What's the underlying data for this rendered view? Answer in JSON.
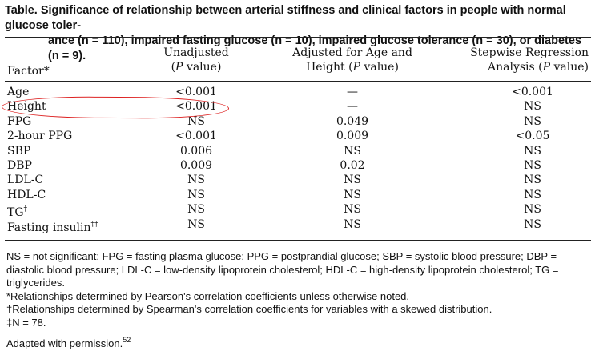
{
  "caption": {
    "label": "Table.",
    "line1": "Significance of relationship between arterial stiffness and clinical factors in people with normal glucose toler-",
    "line2": "ance (n = 110), impaired fasting glucose (n = 10), impaired glucose tolerance (n = 30), or diabetes (n = 9)."
  },
  "header": {
    "factor": "Factor*",
    "unadjusted_l1": "Unadjusted",
    "unadjusted_l2_pre": "(",
    "unadjusted_l2_p": "P",
    "unadjusted_l2_post": " value)",
    "adjusted_l1": "Adjusted for Age and",
    "adjusted_l2_pre": "Height (",
    "adjusted_l2_p": "P",
    "adjusted_l2_post": " value)",
    "stepwise_l1": "Stepwise Regression",
    "stepwise_l2_pre": "Analysis (",
    "stepwise_l2_p": "P",
    "stepwise_l2_post": " value)"
  },
  "rows": [
    {
      "factor": "Age",
      "sup": "",
      "unadjusted": "<0.001",
      "adjusted": "—",
      "stepwise": "<0.001"
    },
    {
      "factor": "Height",
      "sup": "",
      "unadjusted": "<0.001",
      "adjusted": "—",
      "stepwise": "NS"
    },
    {
      "factor": "FPG",
      "sup": "",
      "unadjusted": "NS",
      "adjusted": "0.049",
      "stepwise": "NS"
    },
    {
      "factor": "2-hour PPG",
      "sup": "",
      "unadjusted": "<0.001",
      "adjusted": "0.009",
      "stepwise": "<0.05"
    },
    {
      "factor": "SBP",
      "sup": "",
      "unadjusted": "0.006",
      "adjusted": "NS",
      "stepwise": "NS"
    },
    {
      "factor": "DBP",
      "sup": "",
      "unadjusted": "0.009",
      "adjusted": "0.02",
      "stepwise": "NS"
    },
    {
      "factor": "LDL-C",
      "sup": "",
      "unadjusted": "NS",
      "adjusted": "NS",
      "stepwise": "NS"
    },
    {
      "factor": "HDL-C",
      "sup": "",
      "unadjusted": "NS",
      "adjusted": "NS",
      "stepwise": "NS"
    },
    {
      "factor": "TG",
      "sup": "†",
      "unadjusted": "NS",
      "adjusted": "NS",
      "stepwise": "NS"
    },
    {
      "factor": "Fasting insulin",
      "sup": "†‡",
      "unadjusted": "NS",
      "adjusted": "NS",
      "stepwise": "NS"
    }
  ],
  "footnotes": {
    "abbrev": "NS = not significant; FPG = fasting plasma glucose; PPG = postprandial glucose; SBP = systolic blood pressure; DBP = diastolic blood pressure; LDL-C = low-density lipoprotein cholesterol; HDL-C = high-density lipoprotein cholesterol; TG = triglycerides.",
    "star": "*Relationships determined by Pearson's correlation coefficients unless otherwise noted.",
    "dagger": "†Relationships determined by Spearman's correlation coefficients for variables with a skewed distribution.",
    "ddagger": "‡N = 78.",
    "adapted": "Adapted with permission.",
    "adapted_ref": "52"
  },
  "colors": {
    "highlight": "#d22"
  }
}
